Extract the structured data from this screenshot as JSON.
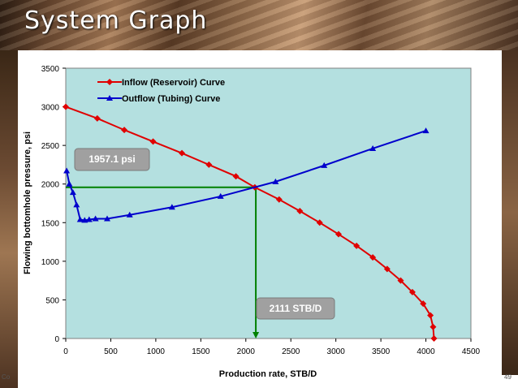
{
  "slide": {
    "title": "System Graph",
    "footer_left": "Co",
    "page_number": "49"
  },
  "colors": {
    "plot_background": "#b4e0e0",
    "inflow": "#e00000",
    "outflow": "#0000cc",
    "guide": "#008000",
    "callout": "#a0a0a0"
  },
  "chart_data": {
    "type": "line",
    "xlabel": "Production rate, STB/D",
    "ylabel": "Flowing bottomhole pressure, psi",
    "xlim": [
      0,
      4500
    ],
    "ylim": [
      0,
      3500
    ],
    "x_ticks": [
      0,
      500,
      1000,
      1500,
      2000,
      2500,
      3000,
      3500,
      4000,
      4500
    ],
    "y_ticks": [
      0,
      500,
      1000,
      1500,
      2000,
      2500,
      3000,
      3500
    ],
    "grid": false,
    "legend_position": "top-center",
    "series": [
      {
        "name": "Inflow (Reservoir) Curve",
        "color": "#e00000",
        "marker": "diamond",
        "points": [
          [
            0,
            3000
          ],
          [
            350,
            2850
          ],
          [
            650,
            2700
          ],
          [
            970,
            2550
          ],
          [
            1290,
            2400
          ],
          [
            1590,
            2250
          ],
          [
            1890,
            2100
          ],
          [
            2100,
            1957
          ],
          [
            2370,
            1800
          ],
          [
            2600,
            1650
          ],
          [
            2820,
            1500
          ],
          [
            3030,
            1350
          ],
          [
            3230,
            1200
          ],
          [
            3410,
            1050
          ],
          [
            3570,
            900
          ],
          [
            3720,
            750
          ],
          [
            3850,
            600
          ],
          [
            3970,
            450
          ],
          [
            4050,
            300
          ],
          [
            4080,
            150
          ],
          [
            4090,
            0
          ]
        ]
      },
      {
        "name": "Outflow (Tubing) Curve",
        "color": "#0000cc",
        "marker": "triangle",
        "points": [
          [
            10,
            2170
          ],
          [
            40,
            2000
          ],
          [
            80,
            1890
          ],
          [
            120,
            1730
          ],
          [
            160,
            1540
          ],
          [
            210,
            1530
          ],
          [
            260,
            1540
          ],
          [
            330,
            1550
          ],
          [
            460,
            1550
          ],
          [
            710,
            1600
          ],
          [
            1180,
            1700
          ],
          [
            1720,
            1840
          ],
          [
            2330,
            2030
          ],
          [
            2870,
            2240
          ],
          [
            3410,
            2460
          ],
          [
            4000,
            2690
          ]
        ]
      }
    ],
    "operating_point": {
      "x": 2111,
      "y": 1957.1
    },
    "annotations": [
      {
        "text": "1957.1 psi"
      },
      {
        "text": "2111 STB/D"
      }
    ]
  }
}
